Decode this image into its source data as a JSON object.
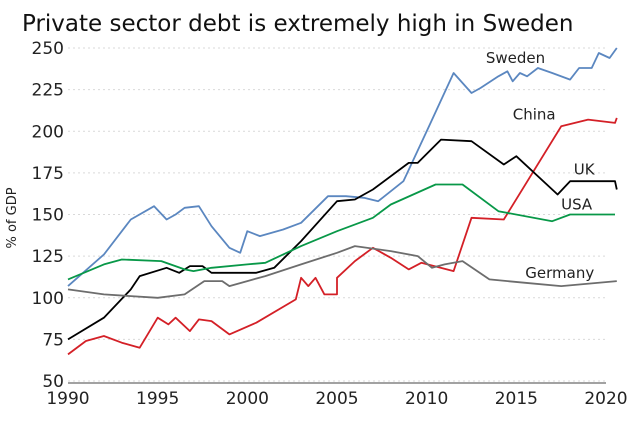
{
  "chart_data": {
    "type": "line",
    "title": "Private sector debt is extremely high in Sweden",
    "ylabel": "% of GDP",
    "xlabel": "",
    "xlim": [
      1990,
      2020
    ],
    "ylim": [
      50,
      250
    ],
    "xticks": [
      1990,
      1995,
      2000,
      2005,
      2010,
      2015,
      2020
    ],
    "yticks": [
      50,
      75,
      100,
      125,
      150,
      175,
      200,
      225,
      250
    ],
    "grid": "horizontal",
    "legend": "inline-labels",
    "series": [
      {
        "name": "Sweden",
        "color": "#5b87c0",
        "points": [
          [
            1990,
            107
          ],
          [
            1992,
            126
          ],
          [
            1993.5,
            147
          ],
          [
            1994.8,
            155
          ],
          [
            1995.5,
            147
          ],
          [
            1996,
            150
          ],
          [
            1996.5,
            154
          ],
          [
            1997.3,
            155
          ],
          [
            1998,
            143
          ],
          [
            1999,
            130
          ],
          [
            1999.6,
            127
          ],
          [
            2000,
            140
          ],
          [
            2000.7,
            137
          ],
          [
            2002,
            141
          ],
          [
            2003,
            145
          ],
          [
            2004.5,
            161
          ],
          [
            2005.5,
            161
          ],
          [
            2006.5,
            160
          ],
          [
            2007.3,
            158
          ],
          [
            2008.7,
            170
          ],
          [
            2010,
            200
          ],
          [
            2011.5,
            235
          ],
          [
            2012.5,
            223
          ],
          [
            2013,
            226
          ],
          [
            2014,
            233
          ],
          [
            2014.5,
            236
          ],
          [
            2014.8,
            230
          ],
          [
            2015.2,
            235
          ],
          [
            2015.6,
            233
          ],
          [
            2016.2,
            238
          ],
          [
            2017,
            235
          ],
          [
            2018,
            231
          ],
          [
            2018.5,
            238
          ],
          [
            2019.2,
            238
          ],
          [
            2019.6,
            247
          ],
          [
            2020.2,
            244
          ],
          [
            2020.6,
            250
          ]
        ]
      },
      {
        "name": "China",
        "color": "#d42027",
        "points": [
          [
            1990,
            66
          ],
          [
            1991,
            74
          ],
          [
            1992,
            77
          ],
          [
            1993,
            73
          ],
          [
            1994,
            70
          ],
          [
            1995,
            88
          ],
          [
            1995.6,
            84
          ],
          [
            1996,
            88
          ],
          [
            1996.8,
            80
          ],
          [
            1997.3,
            87
          ],
          [
            1998,
            86
          ],
          [
            1999,
            78
          ],
          [
            2000.5,
            85
          ],
          [
            2002.7,
            99
          ],
          [
            2003,
            112
          ],
          [
            2003.4,
            107
          ],
          [
            2003.8,
            112
          ],
          [
            2004.3,
            102
          ],
          [
            2005,
            102
          ],
          [
            2005,
            112
          ],
          [
            2006,
            122
          ],
          [
            2007,
            130
          ],
          [
            2008,
            124
          ],
          [
            2009,
            117
          ],
          [
            2009.7,
            121
          ],
          [
            2011.5,
            116
          ],
          [
            2012.5,
            148
          ],
          [
            2014.3,
            147
          ],
          [
            2017.5,
            203
          ],
          [
            2019,
            207
          ],
          [
            2020.5,
            205
          ],
          [
            2020.6,
            208
          ]
        ]
      },
      {
        "name": "UK",
        "color": "#000000",
        "points": [
          [
            1990,
            75
          ],
          [
            1992,
            88
          ],
          [
            1993.5,
            105
          ],
          [
            1994,
            113
          ],
          [
            1995.5,
            118
          ],
          [
            1996.2,
            115
          ],
          [
            1996.8,
            119
          ],
          [
            1997.5,
            119
          ],
          [
            1998,
            115
          ],
          [
            2000.5,
            115
          ],
          [
            2001.5,
            118
          ],
          [
            2003,
            134
          ],
          [
            2005,
            158
          ],
          [
            2006,
            159
          ],
          [
            2007,
            165
          ],
          [
            2009,
            181
          ],
          [
            2009.5,
            181
          ],
          [
            2010.8,
            195
          ],
          [
            2012.5,
            194
          ],
          [
            2014.3,
            180
          ],
          [
            2015,
            185
          ],
          [
            2017.3,
            162
          ],
          [
            2018,
            170
          ],
          [
            2020.5,
            170
          ],
          [
            2020.6,
            165
          ]
        ]
      },
      {
        "name": "USA",
        "color": "#089848",
        "points": [
          [
            1990,
            111
          ],
          [
            1992,
            120
          ],
          [
            1993,
            123
          ],
          [
            1995.2,
            122
          ],
          [
            1996.5,
            117
          ],
          [
            1997,
            116
          ],
          [
            1998,
            118
          ],
          [
            2000,
            120
          ],
          [
            2001,
            121
          ],
          [
            2003,
            131
          ],
          [
            2005,
            140
          ],
          [
            2007,
            148
          ],
          [
            2008,
            156
          ],
          [
            2010.5,
            168
          ],
          [
            2012,
            168
          ],
          [
            2014,
            152
          ],
          [
            2017,
            146
          ],
          [
            2018,
            150
          ],
          [
            2020.5,
            150
          ]
        ]
      },
      {
        "name": "Germany",
        "color": "#6d6d6d",
        "points": [
          [
            1990,
            105
          ],
          [
            1992,
            102
          ],
          [
            1995,
            100
          ],
          [
            1996.5,
            102
          ],
          [
            1997.6,
            110
          ],
          [
            1998.6,
            110
          ],
          [
            1999,
            107
          ],
          [
            2000,
            110
          ],
          [
            2001,
            113
          ],
          [
            2003,
            120
          ],
          [
            2005,
            127
          ],
          [
            2006,
            131
          ],
          [
            2008,
            128
          ],
          [
            2009.5,
            125
          ],
          [
            2010.3,
            118
          ],
          [
            2011,
            120
          ],
          [
            2012,
            122
          ],
          [
            2013.5,
            111
          ],
          [
            2015.5,
            109
          ],
          [
            2017.5,
            107
          ],
          [
            2020.6,
            110
          ]
        ]
      }
    ],
    "labels": [
      {
        "series": "Sweden",
        "text": "Sweden",
        "x": 2013.3,
        "y": 241
      },
      {
        "series": "China",
        "text": "China",
        "x": 2014.8,
        "y": 207
      },
      {
        "series": "UK",
        "text": "UK",
        "x": 2018.2,
        "y": 174
      },
      {
        "series": "USA",
        "text": "USA",
        "x": 2017.5,
        "y": 153
      },
      {
        "series": "Germany",
        "text": "Germany",
        "x": 2015.5,
        "y": 112
      }
    ]
  }
}
